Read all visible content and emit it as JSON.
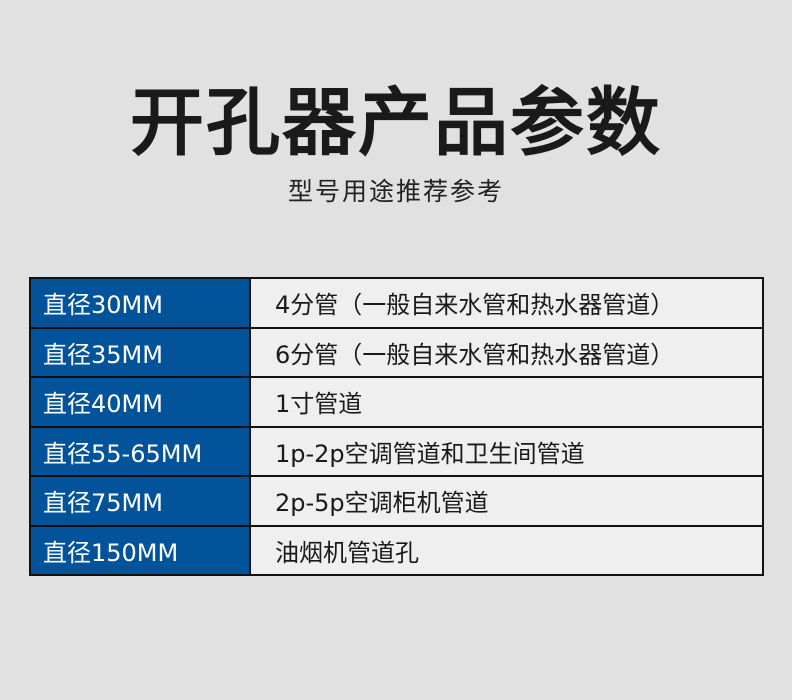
{
  "title": "开孔器产品参数",
  "subtitle": "型号用途推荐参考",
  "rows": [
    {
      "size": "直径30MM",
      "use": "4分管（一般自来水管和热水器管道）"
    },
    {
      "size": "直径35MM",
      "use": "6分管（一般自来水管和热水器管道）"
    },
    {
      "size": "直径40MM",
      "use": "1寸管道"
    },
    {
      "size": "直径55-65MM",
      "use": "1p-2p空调管道和卫生间管道"
    },
    {
      "size": "直径75MM",
      "use": "2p-5p空调柜机管道"
    },
    {
      "size": "直径150MM",
      "use": "油烟机管道孔"
    }
  ],
  "colors": {
    "header_blue": "#03539a",
    "background": "#e1e1e1"
  }
}
